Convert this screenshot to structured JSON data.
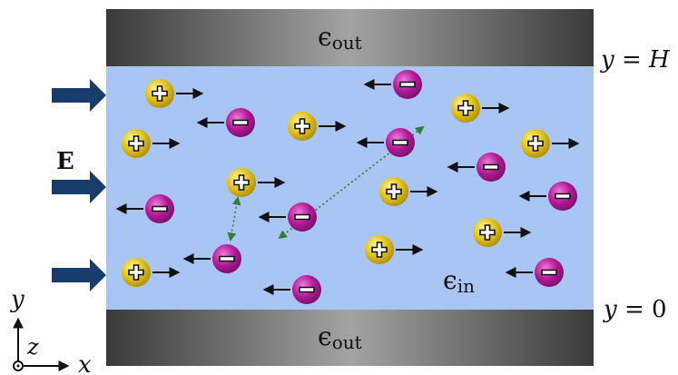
{
  "colors": {
    "channel": "#a9c5f3",
    "wall_edge": "#3a3a3a",
    "wall_center": "#a3a3a3",
    "field_arrow": "#163d6b",
    "positive_ion": "#e0c21a",
    "negative_ion": "#b11a98",
    "ion_arrow": "#111111",
    "trajectory": "#2e7d32"
  },
  "labels": {
    "epsilon_out": "ϵ",
    "epsilon_out_sub": "out",
    "epsilon_in": "ϵ",
    "epsilon_in_sub": "in",
    "y_H_var": "y",
    "y_H_eq": " = ",
    "y_H_val": "H",
    "y_0_var": "y",
    "y_0_eq": " = ",
    "y_0_val": "0",
    "field": "E",
    "axis_x": "x",
    "axis_y": "y",
    "axis_z": "z"
  },
  "ions": [
    {
      "charge": "positive",
      "sign": "+",
      "direction": "right"
    },
    {
      "charge": "negative",
      "sign": "−",
      "direction": "left"
    },
    {
      "charge": "positive",
      "sign": "+",
      "direction": "right"
    },
    {
      "charge": "negative",
      "sign": "−",
      "direction": "left"
    },
    {
      "charge": "positive",
      "sign": "+",
      "direction": "right"
    },
    {
      "charge": "positive",
      "sign": "+",
      "direction": "right"
    },
    {
      "charge": "negative",
      "sign": "−",
      "direction": "left"
    },
    {
      "charge": "positive",
      "sign": "+",
      "direction": "right"
    },
    {
      "charge": "negative",
      "sign": "−",
      "direction": "left"
    },
    {
      "charge": "positive",
      "sign": "+",
      "direction": "right"
    },
    {
      "charge": "negative",
      "sign": "−",
      "direction": "left"
    },
    {
      "charge": "positive",
      "sign": "+",
      "direction": "right"
    },
    {
      "charge": "positive",
      "sign": "+",
      "direction": "right"
    },
    {
      "charge": "negative",
      "sign": "−",
      "direction": "left"
    },
    {
      "charge": "negative",
      "sign": "−",
      "direction": "left"
    },
    {
      "charge": "positive",
      "sign": "+",
      "direction": "right"
    },
    {
      "charge": "negative",
      "sign": "−",
      "direction": "left"
    },
    {
      "charge": "positive",
      "sign": "+",
      "direction": "right"
    },
    {
      "charge": "positive",
      "sign": "+",
      "direction": "right"
    },
    {
      "charge": "negative",
      "sign": "−",
      "direction": "left"
    },
    {
      "charge": "negative",
      "sign": "−",
      "direction": "left"
    }
  ]
}
